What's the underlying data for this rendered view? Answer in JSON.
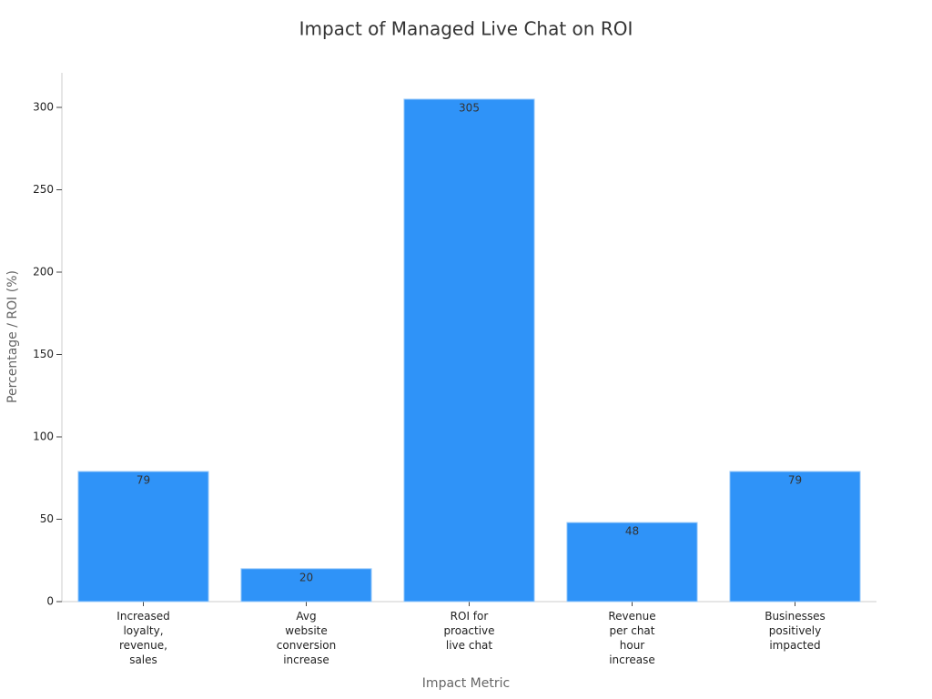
{
  "chart_data": {
    "type": "bar",
    "title": "Impact of Managed Live Chat on ROI",
    "x_label": "Impact Metric",
    "y_label": "Percentage / ROI (%)",
    "categories": [
      [
        "Increased",
        "loyalty,",
        "revenue,",
        "sales"
      ],
      [
        "Avg",
        "website",
        "conversion",
        "increase"
      ],
      [
        "ROI for",
        "proactive",
        "live chat"
      ],
      [
        "Revenue",
        "per chat",
        "hour",
        "increase"
      ],
      [
        "Businesses",
        "positively",
        "impacted"
      ]
    ],
    "values": [
      79,
      20,
      305,
      48,
      79
    ],
    "color": "#2f93f8",
    "ylim": [
      0,
      320
    ],
    "yticks": [
      0,
      50,
      100,
      150,
      200,
      250,
      300
    ],
    "grid": false
  }
}
